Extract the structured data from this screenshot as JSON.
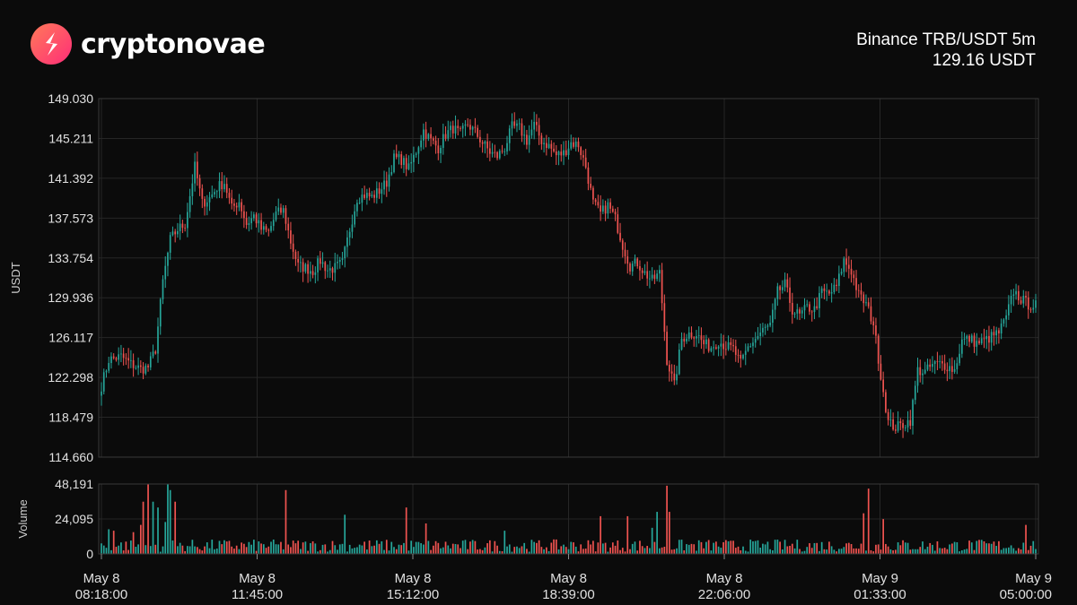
{
  "brand": {
    "name": "cryptonovae",
    "logo_icon": "cryptonovae-logo-icon",
    "accent": "#ff3c6e"
  },
  "header": {
    "pair": "Binance TRB/USDT 5m",
    "price": "129.16 USDT"
  },
  "colors": {
    "up": "#26a69a",
    "down": "#ef5350",
    "grid": "#262626",
    "background": "#0b0b0b"
  },
  "chart_data": {
    "type": "candlestick",
    "ylabel": "USDT",
    "ylim": [
      114.66,
      149.03
    ],
    "y_ticks": [
      "149.030",
      "145.211",
      "141.392",
      "137.573",
      "133.754",
      "129.936",
      "126.117",
      "122.298",
      "118.479",
      "114.660"
    ],
    "x_ticks": [
      {
        "date": "May  8",
        "time": "08:18:00"
      },
      {
        "date": "May  8",
        "time": "11:45:00"
      },
      {
        "date": "May  8",
        "time": "15:12:00"
      },
      {
        "date": "May  8",
        "time": "18:39:00"
      },
      {
        "date": "May  8",
        "time": "22:06:00"
      },
      {
        "date": "May  9",
        "time": "01:33:00"
      },
      {
        "date": "May  9",
        "time": "05:00:00"
      }
    ],
    "close_path": [
      [
        0,
        121.5
      ],
      [
        3,
        124.0
      ],
      [
        8,
        124.3
      ],
      [
        12,
        123.6
      ],
      [
        16,
        123.1
      ],
      [
        19,
        123.3
      ],
      [
        22,
        125.0
      ],
      [
        25,
        131.5
      ],
      [
        28,
        135.5
      ],
      [
        31,
        136.5
      ],
      [
        34,
        137.0
      ],
      [
        38,
        142.5
      ],
      [
        41,
        139.0
      ],
      [
        44,
        139.5
      ],
      [
        47,
        140.5
      ],
      [
        50,
        141.0
      ],
      [
        53,
        138.5
      ],
      [
        56,
        139.2
      ],
      [
        59,
        137.0
      ],
      [
        62,
        137.8
      ],
      [
        65,
        136.5
      ],
      [
        68,
        136.2
      ],
      [
        71,
        138.0
      ],
      [
        74,
        138.3
      ],
      [
        77,
        135.3
      ],
      [
        80,
        133.0
      ],
      [
        83,
        132.8
      ],
      [
        86,
        132.5
      ],
      [
        89,
        133.5
      ],
      [
        92,
        132.6
      ],
      [
        95,
        132.8
      ],
      [
        98,
        133.3
      ],
      [
        101,
        136.5
      ],
      [
        104,
        139.5
      ],
      [
        107,
        139.8
      ],
      [
        110,
        139.6
      ],
      [
        113,
        140.2
      ],
      [
        116,
        141.0
      ],
      [
        119,
        143.3
      ],
      [
        122,
        143.2
      ],
      [
        125,
        142.3
      ],
      [
        128,
        144.0
      ],
      [
        131,
        146.0
      ],
      [
        134,
        145.0
      ],
      [
        137,
        144.3
      ],
      [
        140,
        145.6
      ],
      [
        143,
        146.2
      ],
      [
        146,
        145.6
      ],
      [
        149,
        146.6
      ],
      [
        152,
        145.8
      ],
      [
        155,
        144.8
      ],
      [
        158,
        143.9
      ],
      [
        161,
        143.5
      ],
      [
        164,
        144.3
      ],
      [
        167,
        146.3
      ],
      [
        170,
        146.2
      ],
      [
        173,
        145.0
      ],
      [
        176,
        146.5
      ],
      [
        179,
        145.0
      ],
      [
        182,
        144.5
      ],
      [
        185,
        143.6
      ],
      [
        188,
        143.8
      ],
      [
        191,
        144.8
      ],
      [
        194,
        144.6
      ],
      [
        197,
        142.5
      ],
      [
        200,
        139.0
      ],
      [
        203,
        138.0
      ],
      [
        206,
        138.8
      ],
      [
        209,
        137.5
      ],
      [
        212,
        135.0
      ],
      [
        215,
        133.0
      ],
      [
        218,
        133.3
      ],
      [
        221,
        132.3
      ],
      [
        224,
        131.6
      ],
      [
        227,
        132.3
      ],
      [
        230,
        124.0
      ],
      [
        233,
        121.5
      ],
      [
        236,
        126.0
      ],
      [
        239,
        126.5
      ],
      [
        242,
        126.5
      ],
      [
        245,
        125.5
      ],
      [
        248,
        125.2
      ],
      [
        251,
        125.8
      ],
      [
        254,
        125.3
      ],
      [
        257,
        125.0
      ],
      [
        260,
        123.6
      ],
      [
        263,
        125.2
      ],
      [
        266,
        126.0
      ],
      [
        269,
        126.8
      ],
      [
        272,
        127.3
      ],
      [
        275,
        130.5
      ],
      [
        278,
        131.2
      ],
      [
        281,
        128.8
      ],
      [
        284,
        128.2
      ],
      [
        287,
        129.0
      ],
      [
        290,
        128.8
      ],
      [
        293,
        130.5
      ],
      [
        296,
        130.3
      ],
      [
        299,
        131.0
      ],
      [
        302,
        133.5
      ],
      [
        305,
        132.5
      ],
      [
        308,
        130.2
      ],
      [
        311,
        129.3
      ],
      [
        314,
        127.5
      ],
      [
        317,
        122.5
      ],
      [
        320,
        118.0
      ],
      [
        323,
        117.5
      ],
      [
        326,
        117.8
      ],
      [
        329,
        118.2
      ],
      [
        332,
        123.0
      ],
      [
        335,
        122.8
      ],
      [
        338,
        123.5
      ],
      [
        341,
        123.6
      ],
      [
        344,
        123.4
      ],
      [
        347,
        123.0
      ],
      [
        350,
        125.8
      ],
      [
        353,
        126.0
      ],
      [
        356,
        125.6
      ],
      [
        359,
        125.8
      ],
      [
        362,
        126.2
      ],
      [
        365,
        126.6
      ],
      [
        368,
        128.0
      ],
      [
        371,
        130.6
      ],
      [
        374,
        129.8
      ],
      [
        377,
        129.3
      ],
      [
        380,
        129.2
      ]
    ],
    "candle_count": 381,
    "volume": {
      "ylabel": "Volume",
      "ylim": [
        0,
        48191
      ],
      "y_ticks": [
        "48,191",
        "24,095",
        "0"
      ],
      "spikes": [
        [
          3,
          17000
        ],
        [
          5,
          16000
        ],
        [
          13,
          15000
        ],
        [
          16,
          20000
        ],
        [
          17,
          36000
        ],
        [
          19,
          48191
        ],
        [
          21,
          36000
        ],
        [
          23,
          32000
        ],
        [
          26,
          22000
        ],
        [
          27,
          48191
        ],
        [
          28,
          44000
        ],
        [
          30,
          36000
        ],
        [
          75,
          44000
        ],
        [
          99,
          27000
        ],
        [
          124,
          32000
        ],
        [
          132,
          21000
        ],
        [
          164,
          16000
        ],
        [
          203,
          26000
        ],
        [
          214,
          26000
        ],
        [
          224,
          18000
        ],
        [
          226,
          29000
        ],
        [
          230,
          47000
        ],
        [
          231,
          29000
        ],
        [
          310,
          28000
        ],
        [
          312,
          45000
        ],
        [
          318,
          24000
        ],
        [
          376,
          20000
        ]
      ]
    }
  }
}
